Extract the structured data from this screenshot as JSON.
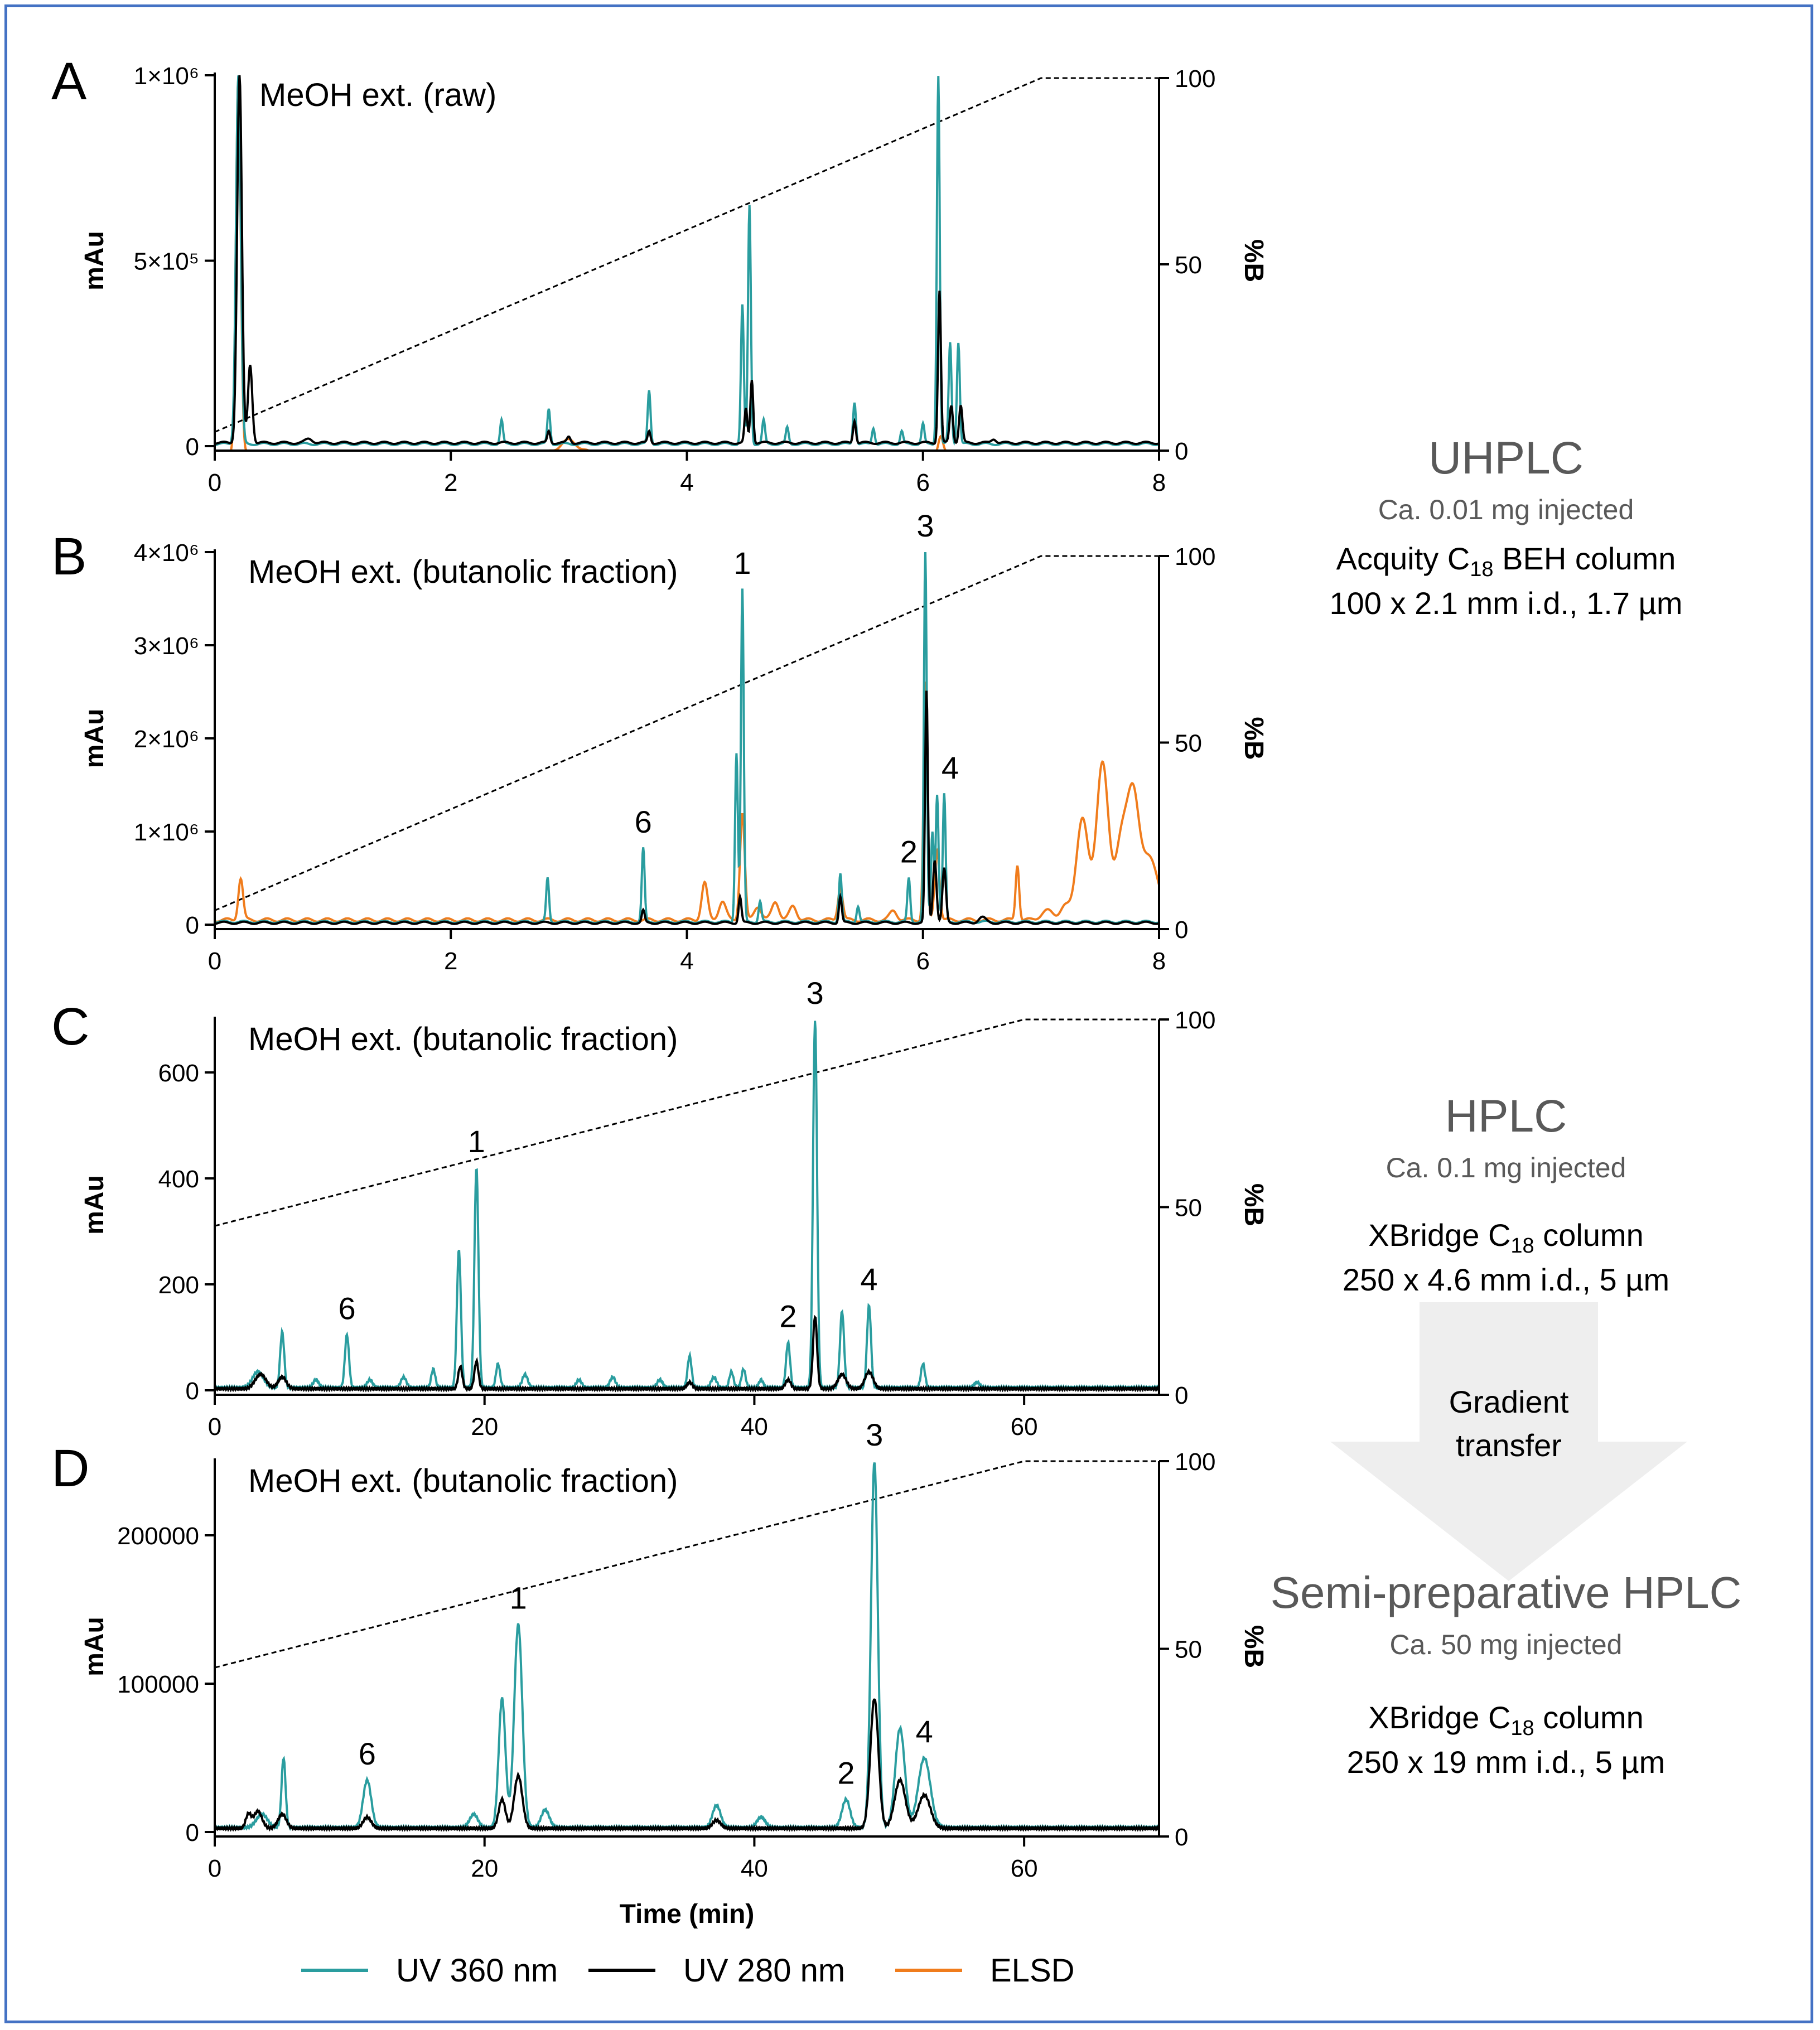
{
  "colors": {
    "uv360": "#2a9d9f",
    "uv280": "#000000",
    "elsd": "#f07c1c",
    "gradient": "#000000",
    "border": "#4472c4",
    "arrow": "#eeeeee"
  },
  "legend": [
    {
      "label": "UV 360 nm",
      "color": "#2a9d9f"
    },
    {
      "label": "UV 280 nm",
      "color": "#000000"
    },
    {
      "label": "ELSD",
      "color": "#f07c1c"
    }
  ],
  "sidebar": {
    "uhplc": {
      "title": "UHPLC",
      "inject": "Ca. 0.01 mg injected",
      "col_pre": "Acquity C",
      "col_sub": "18",
      "col_post": " BEH column",
      "dims": "100 x 2.1 mm i.d., 1.7 µm"
    },
    "hplc": {
      "title": "HPLC",
      "inject": "Ca. 0.1 mg injected",
      "col_pre": "XBridge C",
      "col_sub": "18",
      "col_post": " column",
      "dims": "250 x 4.6 mm i.d., 5 µm"
    },
    "transfer": {
      "line1": "Gradient",
      "line2": "transfer"
    },
    "semi": {
      "title": "Semi-preparative HPLC",
      "inject": "Ca. 50 mg injected",
      "col_pre": "XBridge C",
      "col_sub": "18",
      "col_post": " column",
      "dims": "250 x 19 mm i.d., 5 µm"
    }
  },
  "chart_data": [
    {
      "panel": "A",
      "type": "line",
      "title": "MeOH ext. (raw)",
      "xlabel": "",
      "ylabel": "mAu",
      "y2label": "%B",
      "xlim": [
        0,
        8
      ],
      "ylim": [
        0,
        1000000
      ],
      "y2lim": [
        0,
        100
      ],
      "xticks": [
        0,
        2,
        4,
        6,
        8
      ],
      "xtick_labels": [
        "0",
        "2",
        "4",
        "6",
        "8"
      ],
      "yticks": [
        0,
        500000,
        1000000
      ],
      "ytick_labels": [
        "0",
        "5×10⁵",
        "1×10⁶"
      ],
      "y2ticks": [
        0,
        50,
        100
      ],
      "y2tick_labels": [
        "0",
        "50",
        "100"
      ],
      "gradient": {
        "x": [
          0,
          7,
          8
        ],
        "y": [
          5,
          100,
          100
        ]
      },
      "baseline": {
        "uv360": 6000,
        "uv280": 9000,
        "elsd": -20000
      },
      "series": [
        {
          "name": "UV 360 nm",
          "key": "uv360",
          "peaks": [
            [
              0.2,
              1000000,
              0.02
            ],
            [
              2.43,
              70000,
              0.012
            ],
            [
              2.83,
              100000,
              0.012
            ],
            [
              3.68,
              150000,
              0.012
            ],
            [
              4.47,
              380000,
              0.012
            ],
            [
              4.53,
              650000,
              0.012
            ],
            [
              4.65,
              70000,
              0.012
            ],
            [
              4.85,
              50000,
              0.012
            ],
            [
              5.42,
              120000,
              0.012
            ],
            [
              5.58,
              50000,
              0.012
            ],
            [
              5.82,
              40000,
              0.012
            ],
            [
              6.0,
              60000,
              0.012
            ],
            [
              6.13,
              1000000,
              0.012
            ],
            [
              6.23,
              280000,
              0.012
            ],
            [
              6.3,
              280000,
              0.012
            ]
          ]
        },
        {
          "name": "UV 280 nm",
          "key": "uv280",
          "peaks": [
            [
              0.21,
              1000000,
              0.02
            ],
            [
              0.3,
              220000,
              0.018
            ],
            [
              0.8,
              20000,
              0.03
            ],
            [
              2.83,
              40000,
              0.012
            ],
            [
              3.0,
              25000,
              0.015
            ],
            [
              3.68,
              40000,
              0.012
            ],
            [
              4.5,
              100000,
              0.012
            ],
            [
              4.55,
              180000,
              0.012
            ],
            [
              5.42,
              70000,
              0.012
            ],
            [
              6.14,
              420000,
              0.012
            ],
            [
              6.24,
              110000,
              0.014
            ],
            [
              6.32,
              110000,
              0.014
            ],
            [
              6.6,
              20000,
              0.02
            ]
          ]
        },
        {
          "name": "ELSD",
          "key": "elsd",
          "peaks": [
            [
              0.2,
              1000000,
              0.02
            ],
            [
              3.0,
              15000,
              0.08
            ],
            [
              6.15,
              30000,
              0.02
            ]
          ]
        }
      ],
      "labels": []
    },
    {
      "panel": "B",
      "type": "line",
      "title": "MeOH ext. (butanolic fraction)",
      "xlabel": "",
      "ylabel": "mAu",
      "y2label": "%B",
      "xlim": [
        0,
        8
      ],
      "ylim": [
        0,
        4000000
      ],
      "y2lim": [
        0,
        100
      ],
      "xticks": [
        0,
        2,
        4,
        6,
        8
      ],
      "xtick_labels": [
        "0",
        "2",
        "4",
        "6",
        "8"
      ],
      "yticks": [
        0,
        1000000,
        2000000,
        3000000,
        4000000
      ],
      "ytick_labels": [
        "0",
        "1×10⁶",
        "2×10⁶",
        "3×10⁶",
        "4×10⁶"
      ],
      "y2ticks": [
        0,
        50,
        100
      ],
      "y2tick_labels": [
        "0",
        "50",
        "100"
      ],
      "gradient": {
        "x": [
          0,
          7,
          8
        ],
        "y": [
          5,
          100,
          100
        ]
      },
      "baseline": {
        "uv360": 30000,
        "uv280": 20000,
        "elsd": 50000
      },
      "series": [
        {
          "name": "UV 360 nm",
          "key": "uv360",
          "peaks": [
            [
              2.82,
              500000,
              0.012
            ],
            [
              3.63,
              820000,
              0.012
            ],
            [
              4.42,
              1850000,
              0.012
            ],
            [
              4.47,
              3600000,
              0.012
            ],
            [
              4.62,
              250000,
              0.012
            ],
            [
              5.3,
              550000,
              0.012
            ],
            [
              5.45,
              200000,
              0.012
            ],
            [
              5.88,
              500000,
              0.012
            ],
            [
              6.02,
              4000000,
              0.012
            ],
            [
              6.08,
              1000000,
              0.012
            ],
            [
              6.12,
              1400000,
              0.012
            ],
            [
              6.18,
              1400000,
              0.012
            ]
          ]
        },
        {
          "name": "UV 280 nm",
          "key": "uv280",
          "peaks": [
            [
              3.63,
              150000,
              0.012
            ],
            [
              4.45,
              300000,
              0.012
            ],
            [
              5.3,
              300000,
              0.012
            ],
            [
              6.03,
              2500000,
              0.012
            ],
            [
              6.1,
              700000,
              0.015
            ],
            [
              6.18,
              600000,
              0.015
            ],
            [
              6.5,
              80000,
              0.03
            ]
          ]
        },
        {
          "name": "ELSD",
          "key": "elsd",
          "peaks": [
            [
              0.22,
              500000,
              0.02
            ],
            [
              4.15,
              450000,
              0.025
            ],
            [
              4.3,
              250000,
              0.03
            ],
            [
              4.47,
              1200000,
              0.02
            ],
            [
              4.6,
              200000,
              0.03
            ],
            [
              4.75,
              250000,
              0.03
            ],
            [
              4.9,
              200000,
              0.03
            ],
            [
              5.3,
              400000,
              0.02
            ],
            [
              5.75,
              150000,
              0.03
            ],
            [
              6.02,
              2600000,
              0.015
            ],
            [
              6.12,
              800000,
              0.02
            ],
            [
              6.8,
              650000,
              0.015
            ],
            [
              7.05,
              150000,
              0.05
            ],
            [
              7.2,
              200000,
              0.04
            ],
            [
              7.35,
              1150000,
              0.05
            ],
            [
              7.52,
              1750000,
              0.05
            ],
            [
              7.68,
              900000,
              0.05
            ],
            [
              7.78,
              1250000,
              0.05
            ],
            [
              7.92,
              700000,
              0.08
            ]
          ]
        }
      ],
      "labels": [
        {
          "text": "1",
          "x": 4.47,
          "y": 3600000
        },
        {
          "text": "2",
          "x": 5.88,
          "y": 500000
        },
        {
          "text": "3",
          "x": 6.02,
          "y": 4000000
        },
        {
          "text": "4",
          "x": 6.23,
          "y": 1400000
        },
        {
          "text": "6",
          "x": 3.63,
          "y": 820000
        }
      ]
    },
    {
      "panel": "C",
      "type": "line",
      "title": "MeOH ext. (butanolic fraction)",
      "xlabel": "",
      "ylabel": "mAu",
      "y2label": "%B",
      "xlim": [
        0,
        70
      ],
      "ylim": [
        0,
        700
      ],
      "y2lim": [
        0,
        100
      ],
      "xticks": [
        0,
        20,
        40,
        60
      ],
      "xtick_labels": [
        "0",
        "20",
        "40",
        "60"
      ],
      "yticks": [
        0,
        200,
        400,
        600
      ],
      "ytick_labels": [
        "0",
        "200",
        "400",
        "600"
      ],
      "y2ticks": [
        0,
        50,
        100
      ],
      "y2tick_labels": [
        "0",
        "50",
        "100"
      ],
      "gradient": {
        "x": [
          0,
          60,
          70
        ],
        "y": [
          45,
          100,
          100
        ]
      },
      "baseline": {
        "uv360": 5,
        "uv280": 3,
        "elsd": null
      },
      "series": [
        {
          "name": "UV 360 nm",
          "key": "uv360",
          "peaks": [
            [
              3.2,
              35,
              0.4
            ],
            [
              5.0,
              110,
              0.15
            ],
            [
              7.5,
              20,
              0.2
            ],
            [
              9.8,
              105,
              0.15
            ],
            [
              11.5,
              20,
              0.2
            ],
            [
              14.0,
              25,
              0.2
            ],
            [
              16.2,
              40,
              0.15
            ],
            [
              18.1,
              265,
              0.15
            ],
            [
              19.4,
              420,
              0.15
            ],
            [
              21.0,
              50,
              0.15
            ],
            [
              23.0,
              30,
              0.2
            ],
            [
              27.0,
              20,
              0.2
            ],
            [
              29.5,
              25,
              0.2
            ],
            [
              33.0,
              20,
              0.2
            ],
            [
              35.2,
              65,
              0.15
            ],
            [
              37.0,
              25,
              0.2
            ],
            [
              38.3,
              35,
              0.15
            ],
            [
              39.2,
              40,
              0.15
            ],
            [
              40.5,
              20,
              0.15
            ],
            [
              42.5,
              90,
              0.15
            ],
            [
              44.5,
              700,
              0.15
            ],
            [
              46.5,
              150,
              0.15
            ],
            [
              48.5,
              160,
              0.15
            ],
            [
              52.5,
              50,
              0.15
            ],
            [
              56.5,
              15,
              0.2
            ]
          ]
        },
        {
          "name": "UV 280 nm",
          "key": "uv280",
          "peaks": [
            [
              3.4,
              30,
              0.4
            ],
            [
              5.0,
              25,
              0.3
            ],
            [
              18.2,
              45,
              0.15
            ],
            [
              19.4,
              55,
              0.15
            ],
            [
              35.2,
              15,
              0.2
            ],
            [
              42.5,
              20,
              0.2
            ],
            [
              44.5,
              140,
              0.15
            ],
            [
              46.5,
              30,
              0.3
            ],
            [
              48.5,
              35,
              0.3
            ]
          ]
        }
      ],
      "labels": [
        {
          "text": "1",
          "x": 19.4,
          "y": 420
        },
        {
          "text": "2",
          "x": 42.5,
          "y": 90
        },
        {
          "text": "3",
          "x": 44.5,
          "y": 700
        },
        {
          "text": "4",
          "x": 48.5,
          "y": 160
        },
        {
          "text": "6",
          "x": 9.8,
          "y": 105
        }
      ]
    },
    {
      "panel": "D",
      "type": "line",
      "title": "MeOH ext. (butanolic fraction)",
      "xlabel": "Time (min)",
      "ylabel": "mAu",
      "y2label": "%B",
      "xlim": [
        0,
        70
      ],
      "ylim": [
        0,
        250000
      ],
      "y2lim": [
        0,
        100
      ],
      "xticks": [
        0,
        20,
        40,
        60
      ],
      "xtick_labels": [
        "0",
        "20",
        "40",
        "60"
      ],
      "yticks": [
        0,
        100000,
        200000
      ],
      "ytick_labels": [
        "0",
        "100000",
        "200000"
      ],
      "y2ticks": [
        0,
        50,
        100
      ],
      "y2tick_labels": [
        "0",
        "50",
        "100"
      ],
      "gradient": {
        "x": [
          0,
          60,
          70
        ],
        "y": [
          45,
          100,
          100
        ]
      },
      "baseline": {
        "uv360": 3000,
        "uv280": 2500,
        "elsd": null
      },
      "series": [
        {
          "name": "UV 360 nm",
          "key": "uv360",
          "peaks": [
            [
              3.5,
              12000,
              0.4
            ],
            [
              5.1,
              50000,
              0.15
            ],
            [
              11.3,
              35000,
              0.3
            ],
            [
              19.2,
              12000,
              0.3
            ],
            [
              21.3,
              90000,
              0.25
            ],
            [
              22.5,
              140000,
              0.3
            ],
            [
              24.5,
              15000,
              0.3
            ],
            [
              37.2,
              18000,
              0.3
            ],
            [
              40.5,
              10000,
              0.3
            ],
            [
              46.8,
              22000,
              0.3
            ],
            [
              48.9,
              250000,
              0.25
            ],
            [
              50.8,
              70000,
              0.35
            ],
            [
              52.6,
              50000,
              0.45
            ]
          ]
        },
        {
          "name": "UV 280 nm",
          "key": "uv280",
          "peaks": [
            [
              2.5,
              12000,
              0.2
            ],
            [
              3.2,
              14000,
              0.3
            ],
            [
              5.0,
              12000,
              0.3
            ],
            [
              11.3,
              10000,
              0.3
            ],
            [
              21.3,
              22000,
              0.25
            ],
            [
              22.5,
              38000,
              0.3
            ],
            [
              37.2,
              8000,
              0.3
            ],
            [
              48.9,
              90000,
              0.3
            ],
            [
              50.8,
              35000,
              0.4
            ],
            [
              52.6,
              25000,
              0.45
            ]
          ]
        }
      ],
      "labels": [
        {
          "text": "1",
          "x": 22.5,
          "y": 140000
        },
        {
          "text": "2",
          "x": 46.8,
          "y": 22000
        },
        {
          "text": "3",
          "x": 48.9,
          "y": 250000
        },
        {
          "text": "4",
          "x": 52.6,
          "y": 50000
        },
        {
          "text": "6",
          "x": 11.3,
          "y": 35000
        }
      ]
    }
  ]
}
